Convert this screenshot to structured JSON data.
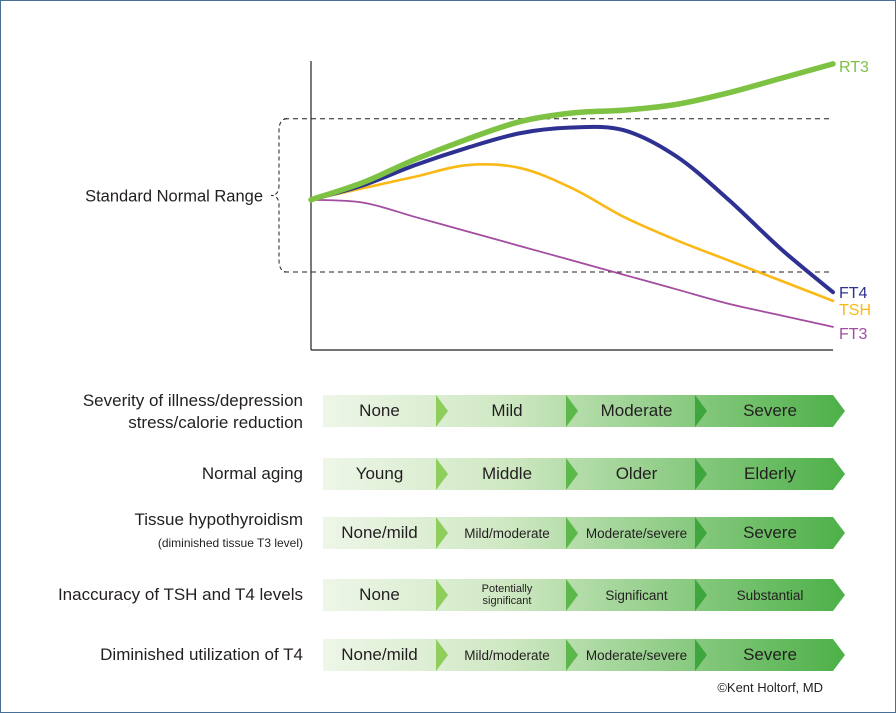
{
  "chart_data": {
    "type": "line",
    "title": "",
    "xlabel": "",
    "ylabel": "",
    "x": [
      0,
      0.1,
      0.2,
      0.3,
      0.4,
      0.5,
      0.6,
      0.7,
      0.8,
      0.9,
      1.0
    ],
    "xlim": [
      0,
      1
    ],
    "ylim": [
      0,
      1
    ],
    "grid": false,
    "normal_range": {
      "lower": 0.27,
      "upper": 0.8,
      "label": "Standard Normal Range"
    },
    "series": [
      {
        "name": "RT3",
        "color": "#7dc242",
        "values": [
          0.52,
          0.58,
          0.66,
          0.73,
          0.79,
          0.82,
          0.83,
          0.85,
          0.89,
          0.94,
          0.99
        ]
      },
      {
        "name": "FT4",
        "color": "#2e3192",
        "values": [
          0.52,
          0.57,
          0.64,
          0.7,
          0.75,
          0.77,
          0.76,
          0.67,
          0.52,
          0.35,
          0.2
        ]
      },
      {
        "name": "TSH",
        "color": "#fbb917",
        "values": [
          0.52,
          0.56,
          0.6,
          0.64,
          0.63,
          0.56,
          0.46,
          0.38,
          0.31,
          0.24,
          0.17
        ]
      },
      {
        "name": "FT3",
        "color": "#a24d9f",
        "values": [
          0.52,
          0.51,
          0.46,
          0.41,
          0.36,
          0.31,
          0.26,
          0.21,
          0.16,
          0.12,
          0.08
        ]
      }
    ]
  },
  "scales": [
    {
      "label_lines": [
        "Severity of illness/depression",
        "stress/calorie reduction"
      ],
      "segments": [
        "None",
        "Mild",
        "Moderate",
        "Severe"
      ]
    },
    {
      "label_lines": [
        "Normal aging"
      ],
      "segments": [
        "Young",
        "Middle",
        "Older",
        "Elderly"
      ]
    },
    {
      "label_lines": [
        "Tissue hypothyroidism",
        "(diminished tissue T3 level)"
      ],
      "segments": [
        "None/mild",
        "Mild/moderate",
        "Moderate/severe",
        "Severe"
      ]
    },
    {
      "label_lines": [
        "Inaccuracy of TSH and T4 levels"
      ],
      "segments": [
        "None",
        "Potentially significant",
        "Significant",
        "Substantial"
      ]
    },
    {
      "label_lines": [
        "Diminished utilization of T4"
      ],
      "segments": [
        "None/mild",
        "Mild/moderate",
        "Moderate/severe",
        "Severe"
      ]
    }
  ],
  "colors": {
    "band_light": "#eef6e8",
    "band_dark": "#4db048",
    "arrow": "#7dc242",
    "axis": "#231f20",
    "dash": "#231f20"
  },
  "credit": "©Kent Holtorf, MD"
}
